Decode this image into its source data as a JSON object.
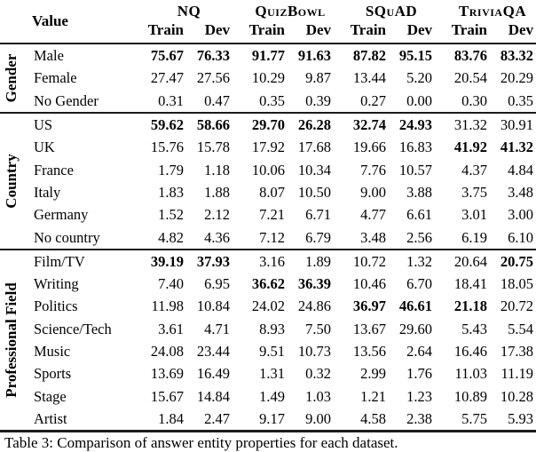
{
  "table": {
    "corner_label": "Value",
    "dataset_groups": [
      "NQ",
      "QuizBowl",
      "SQuAD",
      "TriviaQA"
    ],
    "split_headers": [
      "Train",
      "Dev"
    ],
    "sections": [
      {
        "label": "Gender",
        "rows": [
          {
            "label": "Male",
            "values": [
              "75.67",
              "76.33",
              "91.77",
              "91.63",
              "87.82",
              "95.15",
              "83.76",
              "83.32"
            ],
            "bold": [
              1,
              1,
              1,
              1,
              1,
              1,
              1,
              1
            ]
          },
          {
            "label": "Female",
            "values": [
              "27.47",
              "27.56",
              "10.29",
              "9.87",
              "13.44",
              "5.20",
              "20.54",
              "20.29"
            ],
            "bold": [
              0,
              0,
              0,
              0,
              0,
              0,
              0,
              0
            ]
          },
          {
            "label": "No Gender",
            "values": [
              "0.31",
              "0.47",
              "0.35",
              "0.39",
              "0.27",
              "0.00",
              "0.30",
              "0.35"
            ],
            "bold": [
              0,
              0,
              0,
              0,
              0,
              0,
              0,
              0
            ]
          }
        ]
      },
      {
        "label": "Country",
        "rows": [
          {
            "label": "US",
            "values": [
              "59.62",
              "58.66",
              "29.70",
              "26.28",
              "32.74",
              "24.93",
              "31.32",
              "30.91"
            ],
            "bold": [
              1,
              1,
              1,
              1,
              1,
              1,
              0,
              0
            ]
          },
          {
            "label": "UK",
            "values": [
              "15.76",
              "15.78",
              "17.92",
              "17.68",
              "19.66",
              "16.83",
              "41.92",
              "41.32"
            ],
            "bold": [
              0,
              0,
              0,
              0,
              0,
              0,
              1,
              1
            ]
          },
          {
            "label": "France",
            "values": [
              "1.79",
              "1.18",
              "10.06",
              "10.34",
              "7.76",
              "10.57",
              "4.37",
              "4.84"
            ],
            "bold": [
              0,
              0,
              0,
              0,
              0,
              0,
              0,
              0
            ]
          },
          {
            "label": "Italy",
            "values": [
              "1.83",
              "1.88",
              "8.07",
              "10.50",
              "9.00",
              "3.88",
              "3.75",
              "3.48"
            ],
            "bold": [
              0,
              0,
              0,
              0,
              0,
              0,
              0,
              0
            ]
          },
          {
            "label": "Germany",
            "values": [
              "1.52",
              "2.12",
              "7.21",
              "6.71",
              "4.77",
              "6.61",
              "3.01",
              "3.00"
            ],
            "bold": [
              0,
              0,
              0,
              0,
              0,
              0,
              0,
              0
            ]
          },
          {
            "label": "No country",
            "values": [
              "4.82",
              "4.36",
              "7.12",
              "6.79",
              "3.48",
              "2.56",
              "6.19",
              "6.10"
            ],
            "bold": [
              0,
              0,
              0,
              0,
              0,
              0,
              0,
              0
            ]
          }
        ]
      },
      {
        "label": "Professional Field",
        "rows": [
          {
            "label": "Film/TV",
            "values": [
              "39.19",
              "37.93",
              "3.16",
              "1.89",
              "10.72",
              "1.32",
              "20.64",
              "20.75"
            ],
            "bold": [
              1,
              1,
              0,
              0,
              0,
              0,
              0,
              1
            ]
          },
          {
            "label": "Writing",
            "values": [
              "7.40",
              "6.95",
              "36.62",
              "36.39",
              "10.46",
              "6.70",
              "18.41",
              "18.05"
            ],
            "bold": [
              0,
              0,
              1,
              1,
              0,
              0,
              0,
              0
            ]
          },
          {
            "label": "Politics",
            "values": [
              "11.98",
              "10.84",
              "24.02",
              "24.86",
              "36.97",
              "46.61",
              "21.18",
              "20.72"
            ],
            "bold": [
              0,
              0,
              0,
              0,
              1,
              1,
              1,
              0
            ]
          },
          {
            "label": "Science/Tech",
            "values": [
              "3.61",
              "4.71",
              "8.93",
              "7.50",
              "13.67",
              "29.60",
              "5.43",
              "5.54"
            ],
            "bold": [
              0,
              0,
              0,
              0,
              0,
              0,
              0,
              0
            ]
          },
          {
            "label": "Music",
            "values": [
              "24.08",
              "23.44",
              "9.51",
              "10.73",
              "13.56",
              "2.64",
              "16.46",
              "17.38"
            ],
            "bold": [
              0,
              0,
              0,
              0,
              0,
              0,
              0,
              0
            ]
          },
          {
            "label": "Sports",
            "values": [
              "13.69",
              "16.49",
              "1.31",
              "0.32",
              "2.99",
              "1.76",
              "11.03",
              "11.19"
            ],
            "bold": [
              0,
              0,
              0,
              0,
              0,
              0,
              0,
              0
            ]
          },
          {
            "label": "Stage",
            "values": [
              "15.67",
              "14.84",
              "1.49",
              "1.03",
              "1.21",
              "1.23",
              "10.89",
              "10.28"
            ],
            "bold": [
              0,
              0,
              0,
              0,
              0,
              0,
              0,
              0
            ]
          },
          {
            "label": "Artist",
            "values": [
              "1.84",
              "2.47",
              "9.17",
              "9.00",
              "4.58",
              "2.38",
              "5.75",
              "5.93"
            ],
            "bold": [
              0,
              0,
              0,
              0,
              0,
              0,
              0,
              0
            ]
          }
        ]
      }
    ]
  },
  "caption": "Table 3: Comparison of answer entity properties for each dataset."
}
